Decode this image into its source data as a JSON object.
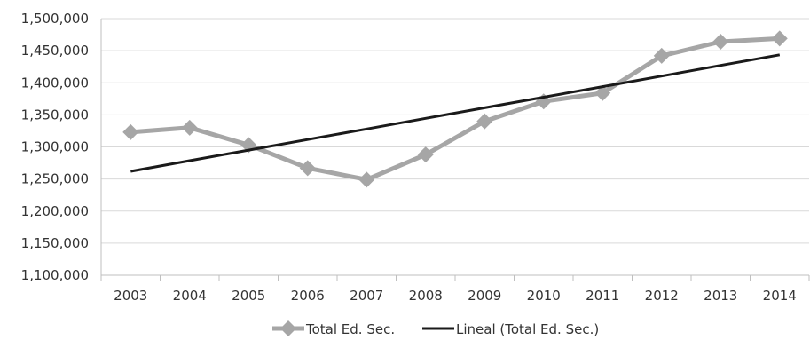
{
  "chart_data": {
    "type": "line",
    "title": "",
    "xlabel": "",
    "ylabel": "",
    "categories": [
      "2003",
      "2004",
      "2005",
      "2006",
      "2007",
      "2008",
      "2009",
      "2010",
      "2011",
      "2012",
      "2013",
      "2014"
    ],
    "ylim": [
      1100000,
      1500000
    ],
    "yticks": [
      1100000,
      1150000,
      1200000,
      1250000,
      1300000,
      1350000,
      1400000,
      1450000,
      1500000
    ],
    "ytick_labels": [
      "1,100,000",
      "1,150,000",
      "1,200,000",
      "1,250,000",
      "1,300,000",
      "1,350,000",
      "1,400,000",
      "1,450,000",
      "1,500,000"
    ],
    "grid": "horizontal",
    "legend_position": "bottom",
    "series": [
      {
        "name": "Total Ed. Sec.",
        "color": "#a6a6a6",
        "marker": "diamond",
        "values": [
          1323000,
          1330000,
          1303000,
          1267000,
          1249000,
          1288000,
          1340000,
          1371000,
          1384000,
          1442000,
          1464000,
          1469000
        ]
      },
      {
        "name": "Lineal (Total Ed. Sec.)",
        "color": "#1a1a1a",
        "marker": "none",
        "values": [
          1262000,
          1278500,
          1295000,
          1311500,
          1328000,
          1344500,
          1361000,
          1377500,
          1394000,
          1410500,
          1427000,
          1443500
        ]
      }
    ]
  }
}
